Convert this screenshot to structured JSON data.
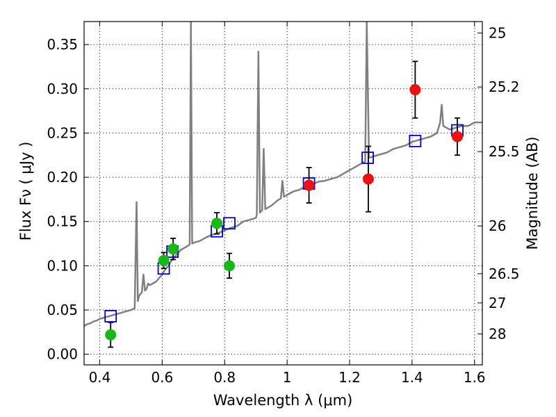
{
  "chart_data": {
    "type": "scatter",
    "xlabel": "Wavelength  λ (μm)",
    "ylabel": "Flux  Fν  ( μJy )",
    "ylabel_right": "Magnitude (AB)",
    "xlim": [
      0.35,
      1.625
    ],
    "ylim": [
      -0.012,
      0.376
    ],
    "grid": true,
    "x_ticks": [
      {
        "value": 0.4,
        "label": "0.4"
      },
      {
        "value": 0.6,
        "label": "0.6"
      },
      {
        "value": 0.8,
        "label": "0.8"
      },
      {
        "value": 1.0,
        "label": "1"
      },
      {
        "value": 1.2,
        "label": "1.2"
      },
      {
        "value": 1.4,
        "label": "1.4"
      },
      {
        "value": 1.6,
        "label": "1.6"
      }
    ],
    "y_ticks": [
      {
        "value": 0.0,
        "label": "0.00"
      },
      {
        "value": 0.05,
        "label": "0.05"
      },
      {
        "value": 0.1,
        "label": "0.10"
      },
      {
        "value": 0.15,
        "label": "0.15"
      },
      {
        "value": 0.2,
        "label": "0.20"
      },
      {
        "value": 0.25,
        "label": "0.25"
      },
      {
        "value": 0.3,
        "label": "0.30"
      },
      {
        "value": 0.35,
        "label": "0.35"
      }
    ],
    "mag_ticks": [
      {
        "flux": 0.363,
        "label": "25"
      },
      {
        "flux": 0.302,
        "label": "25.2"
      },
      {
        "flux": 0.229,
        "label": "25.5"
      },
      {
        "flux": 0.145,
        "label": "26"
      },
      {
        "flux": 0.091,
        "label": "26.5"
      },
      {
        "flux": 0.058,
        "label": "27"
      },
      {
        "flux": 0.023,
        "label": "28"
      }
    ],
    "colors": {
      "spectrum": "#808080",
      "model": "#0000cc",
      "optical": "#18b818",
      "nir": "#ee1111"
    },
    "series": [
      {
        "kind": "line",
        "points": [
          [
            0.35,
            0.032
          ],
          [
            0.36,
            0.034
          ],
          [
            0.37,
            0.035
          ],
          [
            0.38,
            0.037
          ],
          [
            0.39,
            0.038
          ],
          [
            0.4,
            0.04
          ],
          [
            0.41,
            0.041
          ],
          [
            0.42,
            0.042
          ],
          [
            0.43,
            0.043
          ],
          [
            0.44,
            0.044
          ],
          [
            0.45,
            0.045
          ],
          [
            0.46,
            0.046
          ],
          [
            0.47,
            0.047
          ],
          [
            0.48,
            0.048
          ],
          [
            0.49,
            0.049
          ],
          [
            0.5,
            0.05
          ],
          [
            0.512,
            0.052
          ],
          [
            0.518,
            0.172
          ],
          [
            0.522,
            0.06
          ],
          [
            0.526,
            0.066
          ],
          [
            0.535,
            0.07
          ],
          [
            0.54,
            0.09
          ],
          [
            0.545,
            0.072
          ],
          [
            0.55,
            0.074
          ],
          [
            0.555,
            0.08
          ],
          [
            0.56,
            0.078
          ],
          [
            0.57,
            0.08
          ],
          [
            0.58,
            0.082
          ],
          [
            0.59,
            0.086
          ],
          [
            0.6,
            0.09
          ],
          [
            0.61,
            0.096
          ],
          [
            0.62,
            0.1
          ],
          [
            0.63,
            0.106
          ],
          [
            0.64,
            0.11
          ],
          [
            0.65,
            0.114
          ],
          [
            0.66,
            0.118
          ],
          [
            0.67,
            0.12
          ],
          [
            0.68,
            0.122
          ],
          [
            0.688,
            0.124
          ],
          [
            0.692,
            0.376
          ],
          [
            0.696,
            0.125
          ],
          [
            0.7,
            0.126
          ],
          [
            0.72,
            0.128
          ],
          [
            0.74,
            0.132
          ],
          [
            0.76,
            0.135
          ],
          [
            0.78,
            0.137
          ],
          [
            0.8,
            0.14
          ],
          [
            0.82,
            0.143
          ],
          [
            0.84,
            0.145
          ],
          [
            0.86,
            0.15
          ],
          [
            0.88,
            0.152
          ],
          [
            0.9,
            0.154
          ],
          [
            0.903,
            0.158
          ],
          [
            0.908,
            0.342
          ],
          [
            0.913,
            0.16
          ],
          [
            0.92,
            0.163
          ],
          [
            0.925,
            0.232
          ],
          [
            0.93,
            0.164
          ],
          [
            0.95,
            0.168
          ],
          [
            0.97,
            0.174
          ],
          [
            0.98,
            0.176
          ],
          [
            0.985,
            0.196
          ],
          [
            0.99,
            0.178
          ],
          [
            1.0,
            0.18
          ],
          [
            1.02,
            0.184
          ],
          [
            1.04,
            0.186
          ],
          [
            1.06,
            0.19
          ],
          [
            1.08,
            0.192
          ],
          [
            1.1,
            0.195
          ],
          [
            1.12,
            0.196
          ],
          [
            1.14,
            0.198
          ],
          [
            1.16,
            0.2
          ],
          [
            1.18,
            0.204
          ],
          [
            1.2,
            0.208
          ],
          [
            1.22,
            0.212
          ],
          [
            1.24,
            0.216
          ],
          [
            1.25,
            0.218
          ],
          [
            1.255,
            0.376
          ],
          [
            1.262,
            0.222
          ],
          [
            1.28,
            0.224
          ],
          [
            1.3,
            0.226
          ],
          [
            1.32,
            0.228
          ],
          [
            1.34,
            0.232
          ],
          [
            1.36,
            0.234
          ],
          [
            1.38,
            0.236
          ],
          [
            1.4,
            0.24
          ],
          [
            1.42,
            0.242
          ],
          [
            1.44,
            0.244
          ],
          [
            1.46,
            0.246
          ],
          [
            1.48,
            0.25
          ],
          [
            1.49,
            0.262
          ],
          [
            1.495,
            0.282
          ],
          [
            1.5,
            0.258
          ],
          [
            1.52,
            0.254
          ],
          [
            1.54,
            0.256
          ],
          [
            1.56,
            0.258
          ],
          [
            1.58,
            0.258
          ],
          [
            1.6,
            0.262
          ],
          [
            1.625,
            0.262
          ]
        ]
      },
      {
        "kind": "open-square",
        "points": [
          [
            0.435,
            0.043
          ],
          [
            0.605,
            0.097
          ],
          [
            0.633,
            0.116
          ],
          [
            0.775,
            0.139
          ],
          [
            0.815,
            0.148
          ],
          [
            1.07,
            0.193
          ],
          [
            1.258,
            0.222
          ],
          [
            1.41,
            0.241
          ],
          [
            1.545,
            0.253
          ]
        ]
      },
      {
        "kind": "filled-circle",
        "group": "optical",
        "points": [
          {
            "x": 0.435,
            "y": 0.022,
            "err": 0.014
          },
          {
            "x": 0.605,
            "y": 0.106,
            "err": 0.009
          },
          {
            "x": 0.635,
            "y": 0.119,
            "err": 0.012
          },
          {
            "x": 0.775,
            "y": 0.148,
            "err": 0.012
          },
          {
            "x": 0.815,
            "y": 0.1,
            "err": 0.014
          }
        ]
      },
      {
        "kind": "filled-circle",
        "group": "nir",
        "points": [
          {
            "x": 1.07,
            "y": 0.191,
            "err": 0.02
          },
          {
            "x": 1.26,
            "y": 0.198,
            "err": 0.037
          },
          {
            "x": 1.41,
            "y": 0.299,
            "err": 0.032
          },
          {
            "x": 1.545,
            "y": 0.246,
            "err": 0.021
          }
        ]
      }
    ]
  }
}
